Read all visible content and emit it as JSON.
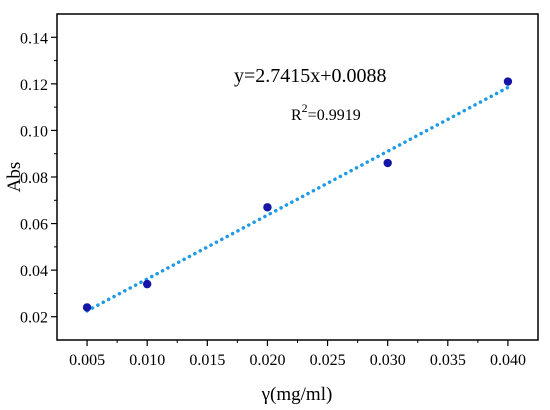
{
  "chart_data": {
    "type": "scatter",
    "xlabel": "γ(mg/ml)",
    "ylabel": "Abs",
    "xlim": [
      0.0025,
      0.0425
    ],
    "ylim": [
      0.01,
      0.15
    ],
    "x_ticks": [
      "0.005",
      "0.010",
      "0.015",
      "0.020",
      "0.025",
      "0.030",
      "0.035",
      "0.040"
    ],
    "y_ticks": [
      "0.02",
      "0.04",
      "0.06",
      "0.08",
      "0.10",
      "0.12",
      "0.14"
    ],
    "x": [
      0.005,
      0.01,
      0.02,
      0.03,
      0.04
    ],
    "y": [
      0.024,
      0.034,
      0.067,
      0.086,
      0.121
    ],
    "trendline": {
      "slope": 2.7415,
      "intercept": 0.0088,
      "x_range": [
        0.005,
        0.04
      ],
      "style": "dotted",
      "color": "#1e9ae6"
    },
    "equation": "y=2.7415x+0.0088",
    "r2_prefix": "R",
    "r2_superscript": "2",
    "r2_suffix": "=0.9919",
    "point_color": "#1515a8",
    "grid": false,
    "legend": "none"
  }
}
